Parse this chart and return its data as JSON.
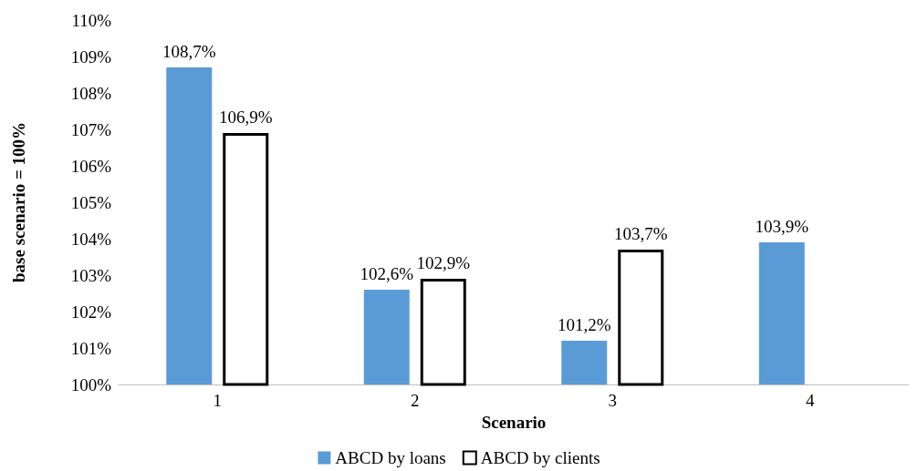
{
  "chart_data": {
    "type": "bar",
    "xlabel": "Scenario",
    "ylabel": "base scenario = 100%",
    "categories": [
      "1",
      "2",
      "3",
      "4"
    ],
    "series": [
      {
        "name": "ABCD by loans",
        "color": "#5b9bd5",
        "values": [
          108.7,
          102.6,
          101.2,
          103.9
        ],
        "value_labels": [
          "108,7%",
          "102,6%",
          "101,2%",
          "103,9%"
        ]
      },
      {
        "name": "ABCD by clients",
        "color": "#ffffff",
        "values": [
          106.9,
          102.9,
          103.7,
          null
        ],
        "value_labels": [
          "106,9%",
          "102,9%",
          "103,7%",
          null
        ]
      }
    ],
    "ylim": [
      100,
      110
    ],
    "yticks": [
      {
        "value": 100,
        "label": "100%"
      },
      {
        "value": 101,
        "label": "101%"
      },
      {
        "value": 102,
        "label": "102%"
      },
      {
        "value": 103,
        "label": "103%"
      },
      {
        "value": 104,
        "label": "104%"
      },
      {
        "value": 105,
        "label": "105%"
      },
      {
        "value": 106,
        "label": "106%"
      },
      {
        "value": 107,
        "label": "107%"
      },
      {
        "value": 108,
        "label": "108%"
      },
      {
        "value": 109,
        "label": "109%"
      },
      {
        "value": 110,
        "label": "110%"
      }
    ],
    "grid": false,
    "legend": "bottom"
  }
}
